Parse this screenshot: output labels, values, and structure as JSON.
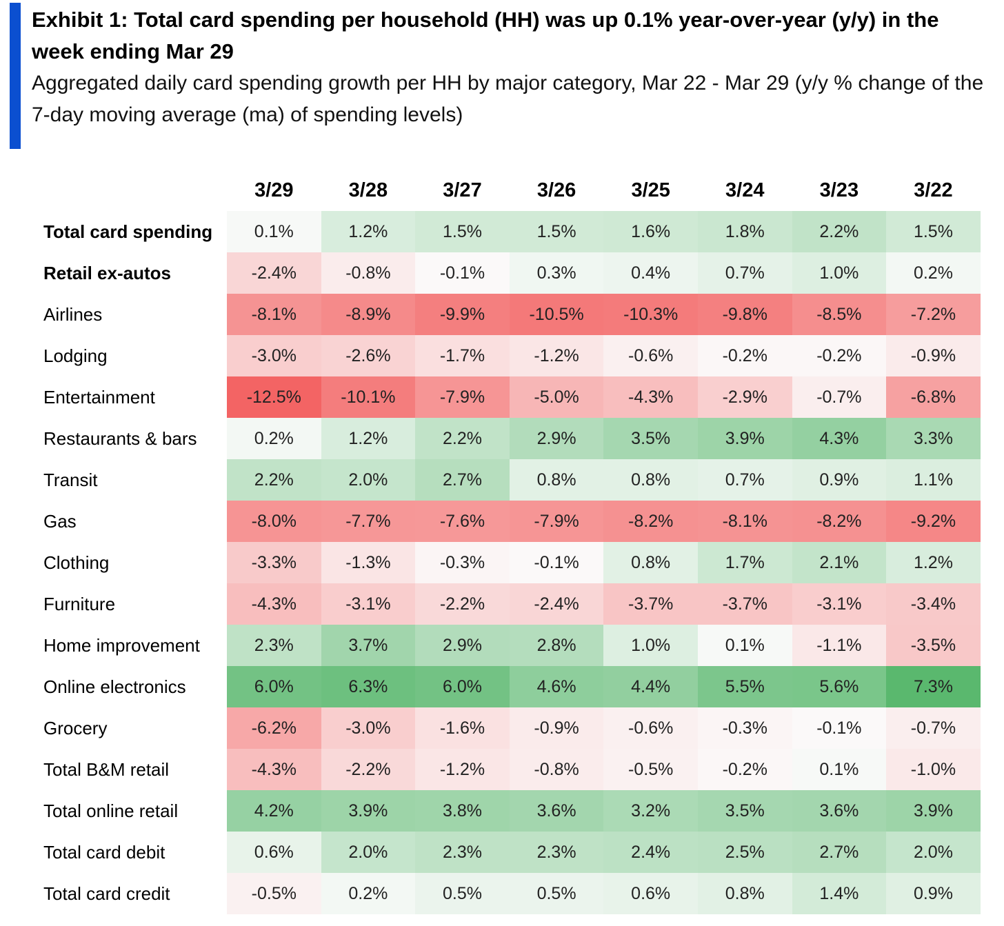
{
  "title": "Exhibit 1: Total card spending per household (HH) was up 0.1% year-over-year (y/y) in the week ending Mar 29",
  "subtitle": "Aggregated daily card spending growth per HH by major category, Mar 22 - Mar 29 (y/y % change of the 7-day moving average (ma) of spending levels)",
  "colors": {
    "accent": "#0b4fd0",
    "positive": "#5ab86e",
    "negative": "#f36464",
    "neutral": "#fbfbfb"
  },
  "chart_data": {
    "type": "heatmap",
    "title": "Exhibit 1: Total card spending per household (HH) was up 0.1% year-over-year (y/y) in the week ending Mar 29",
    "subtitle": "Aggregated daily card spending growth per HH by major category, Mar 22 - Mar 29 (y/y % change of the 7-day moving average (ma) of spending levels)",
    "unit": "%",
    "columns": [
      "3/29",
      "3/28",
      "3/27",
      "3/26",
      "3/25",
      "3/24",
      "3/23",
      "3/22"
    ],
    "rows": [
      {
        "label": "Total card spending",
        "bold": true,
        "values": [
          0.1,
          1.2,
          1.5,
          1.5,
          1.6,
          1.8,
          2.2,
          1.5
        ]
      },
      {
        "label": "Retail ex-autos",
        "bold": true,
        "values": [
          -2.4,
          -0.8,
          -0.1,
          0.3,
          0.4,
          0.7,
          1.0,
          0.2
        ]
      },
      {
        "label": "Airlines",
        "values": [
          -8.1,
          -8.9,
          -9.9,
          -10.5,
          -10.3,
          -9.8,
          -8.5,
          -7.2
        ]
      },
      {
        "label": "Lodging",
        "values": [
          -3.0,
          -2.6,
          -1.7,
          -1.2,
          -0.6,
          -0.2,
          -0.2,
          -0.9
        ]
      },
      {
        "label": "Entertainment",
        "values": [
          -12.5,
          -10.1,
          -7.9,
          -5.0,
          -4.3,
          -2.9,
          -0.7,
          -6.8
        ]
      },
      {
        "label": "Restaurants & bars",
        "values": [
          0.2,
          1.2,
          2.2,
          2.9,
          3.5,
          3.9,
          4.3,
          3.3
        ]
      },
      {
        "label": "Transit",
        "values": [
          2.2,
          2.0,
          2.7,
          0.8,
          0.8,
          0.7,
          0.9,
          1.1
        ]
      },
      {
        "label": "Gas",
        "values": [
          -8.0,
          -7.7,
          -7.6,
          -7.9,
          -8.2,
          -8.1,
          -8.2,
          -9.2
        ]
      },
      {
        "label": "Clothing",
        "values": [
          -3.3,
          -1.3,
          -0.3,
          -0.1,
          0.8,
          1.7,
          2.1,
          1.2
        ]
      },
      {
        "label": "Furniture",
        "values": [
          -4.3,
          -3.1,
          -2.2,
          -2.4,
          -3.7,
          -3.7,
          -3.1,
          -3.4
        ]
      },
      {
        "label": "Home improvement",
        "values": [
          2.3,
          3.7,
          2.9,
          2.8,
          1.0,
          0.1,
          -1.1,
          -3.5
        ]
      },
      {
        "label": "Online electronics",
        "values": [
          6.0,
          6.3,
          6.0,
          4.6,
          4.4,
          5.5,
          5.6,
          7.3
        ]
      },
      {
        "label": "Grocery",
        "values": [
          -6.2,
          -3.0,
          -1.6,
          -0.9,
          -0.6,
          -0.3,
          -0.1,
          -0.7
        ]
      },
      {
        "label": "Total B&M retail",
        "values": [
          -4.3,
          -2.2,
          -1.2,
          -0.8,
          -0.5,
          -0.2,
          0.1,
          -1.0
        ]
      },
      {
        "label": "Total online retail",
        "values": [
          4.2,
          3.9,
          3.8,
          3.6,
          3.2,
          3.5,
          3.6,
          3.9
        ]
      },
      {
        "label": "Total card debit",
        "values": [
          0.6,
          2.0,
          2.3,
          2.3,
          2.4,
          2.5,
          2.7,
          2.0
        ]
      },
      {
        "label": "Total card credit",
        "values": [
          -0.5,
          0.2,
          0.5,
          0.5,
          0.6,
          0.8,
          1.4,
          0.9
        ]
      }
    ]
  }
}
